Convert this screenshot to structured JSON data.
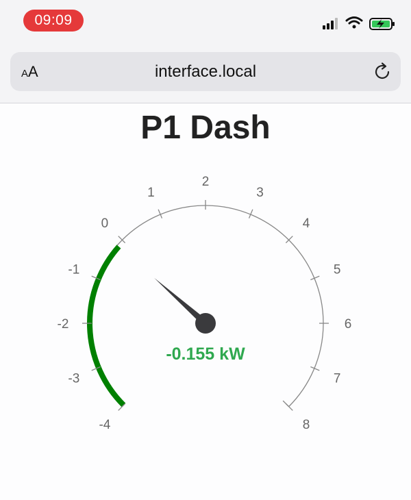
{
  "status_bar": {
    "time": "09:09",
    "icons": [
      "cellular-signal-icon",
      "wifi-icon",
      "battery-charging-icon"
    ]
  },
  "browser": {
    "text_size_small": "A",
    "text_size_large": "A",
    "url": "interface.local",
    "reload_icon": "reload-icon"
  },
  "page": {
    "title": "P1 Dash"
  },
  "gauge": {
    "min": -4,
    "max": 8,
    "value": -0.155,
    "unit": "kW",
    "value_text": "-0.155 kW",
    "tick_labels": [
      "-4",
      "-3",
      "-2",
      "-1",
      "0",
      "1",
      "2",
      "3",
      "4",
      "5",
      "6",
      "7",
      "8"
    ],
    "colors": {
      "arc": "#888888",
      "fill": "#008000",
      "value_text": "#2fa84f",
      "needle": "#3a3a3d"
    }
  }
}
